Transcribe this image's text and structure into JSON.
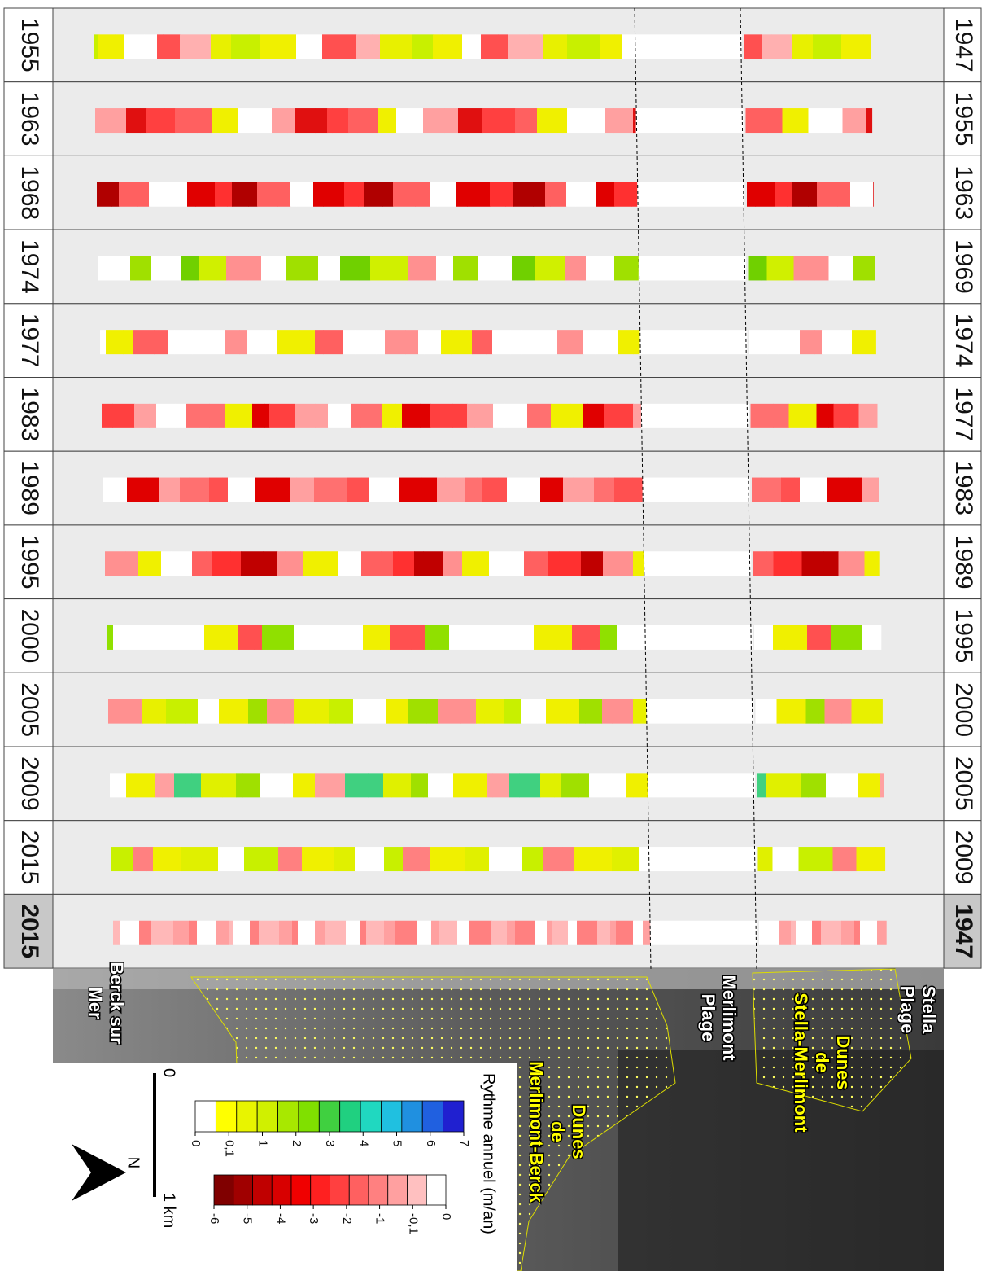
{
  "rows": [
    {
      "left": "1955",
      "right": "1947",
      "colors": [
        "#c8f000",
        "#e8f000",
        "#ffb0b0",
        "#ff5050",
        "#ffffff",
        "#f0f000"
      ]
    },
    {
      "left": "1963",
      "right": "1955",
      "colors": [
        "#ff4040",
        "#e01010",
        "#ffa0a0",
        "#ffffff",
        "#f0f000",
        "#ff6060"
      ]
    },
    {
      "left": "1968",
      "right": "1963",
      "colors": [
        "#e00000",
        "#ff3030",
        "#b00000",
        "#ff6060",
        "#ffffff"
      ]
    },
    {
      "left": "1974",
      "right": "1969",
      "colors": [
        "#a0e000",
        "#ffffff",
        "#ff9090",
        "#d0f000",
        "#70d000",
        "#ffffff"
      ]
    },
    {
      "left": "1977",
      "right": "1974",
      "colors": [
        "#ffffff",
        "#ffffff",
        "#ff6060",
        "#f0f000",
        "#ffffff",
        "#ff9090"
      ]
    },
    {
      "left": "1983",
      "right": "1977",
      "colors": [
        "#ff4040",
        "#e00000",
        "#f0f000",
        "#ff7070",
        "#ffffff",
        "#ffa0a0"
      ]
    },
    {
      "left": "1989",
      "right": "1983",
      "colors": [
        "#ff5050",
        "#ffffff",
        "#e00000",
        "#ffa0a0",
        "#ff7070"
      ]
    },
    {
      "left": "1995",
      "right": "1989",
      "colors": [
        "#c00000",
        "#ff3030",
        "#ff6060",
        "#ffffff",
        "#f0f000",
        "#ff9090"
      ]
    },
    {
      "left": "2000",
      "right": "1995",
      "colors": [
        "#ffffff",
        "#ffffff",
        "#90e000",
        "#ff5050",
        "#f0f000",
        "#ffffff"
      ]
    },
    {
      "left": "2005",
      "right": "2000",
      "colors": [
        "#f0f000",
        "#ffffff",
        "#c8f000",
        "#e8f000",
        "#ff9090",
        "#a0e000"
      ]
    },
    {
      "left": "2009",
      "right": "2005",
      "colors": [
        "#f0f000",
        "#ffffff",
        "#a0e000",
        "#e0f000",
        "#40d080",
        "#ffa0a0"
      ]
    },
    {
      "left": "2015",
      "right": "2009",
      "colors": [
        "#f0f000",
        "#e0f000",
        "#ffffff",
        "#c8f000",
        "#ff8080"
      ]
    },
    {
      "left": "2015",
      "right": "1947",
      "colors": [
        "#ffa0a0",
        "#ff8080",
        "#ffb8b8",
        "#ffffff"
      ]
    }
  ],
  "places": [
    {
      "lines": [
        "Stella",
        "Plage"
      ],
      "color": "#ffffff"
    },
    {
      "lines": [
        "Dunes",
        "de",
        "Stella-Merlimont"
      ],
      "color": "#ffff00"
    },
    {
      "lines": [
        "Merlimont",
        "Plage"
      ],
      "color": "#ffffff"
    },
    {
      "lines": [
        "Dunes",
        "de",
        "Merlimont-Berck"
      ],
      "color": "#ffff00"
    },
    {
      "lines": [
        "Berck sur",
        "Mer"
      ],
      "color": "#ffffff"
    }
  ],
  "legend": {
    "title": "Rythme annuel (m/an)",
    "positive": {
      "colors": [
        "#ffffff",
        "#ffff00",
        "#e8f400",
        "#d0f000",
        "#a8e800",
        "#80e000",
        "#40d040",
        "#20d080",
        "#20d8c0",
        "#20c0e0",
        "#2090e0",
        "#2060e0",
        "#2020d0"
      ],
      "ticks": [
        0,
        {
          "value": 0.1,
          "label": "0,1"
        },
        1,
        2,
        3,
        4,
        5,
        6,
        7
      ]
    },
    "negative": {
      "colors": [
        "#800000",
        "#a00000",
        "#c00000",
        "#d80000",
        "#f00000",
        "#ff2020",
        "#ff4040",
        "#ff6060",
        "#ff8080",
        "#ffa0a0",
        "#ffc0c0",
        "#ffffff"
      ],
      "ticks": [
        -6,
        -5,
        -4,
        -3,
        -2,
        -1,
        {
          "value": -0.1,
          "label": "-0,1"
        },
        0
      ]
    }
  },
  "scale": {
    "start": "0",
    "end": "1 km"
  },
  "north": "N"
}
